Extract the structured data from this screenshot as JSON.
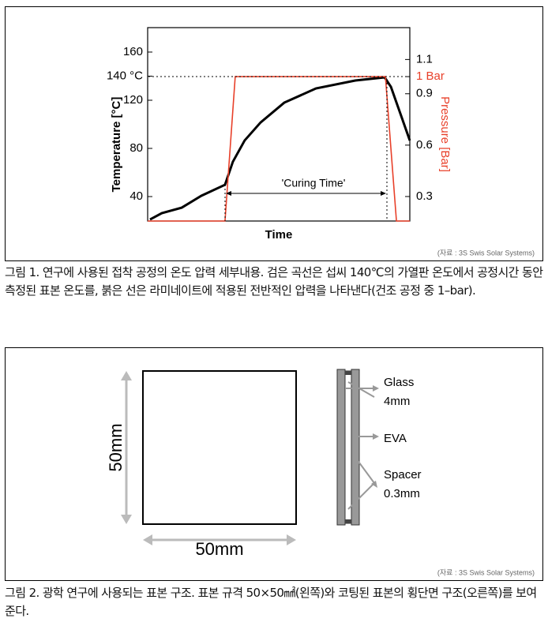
{
  "figures": [
    {
      "chart_data": {
        "type": "line",
        "y_label": "Temperature [°C]",
        "y2_label": "Pressure [Bar]",
        "x_label": "Time",
        "annotation": "'Curing Time'",
        "xlim": [
          0,
          100
        ],
        "ylim": [
          19.7,
          180.3
        ],
        "y2lim": [
          0.157,
          1.286
        ],
        "yticks": [
          40,
          80,
          120,
          {
            "value": 140,
            "label": "140 °C"
          },
          160
        ],
        "y2ticks": [
          0.3,
          0.6,
          0.9,
          {
            "value": 1,
            "label": "1 Bar"
          },
          1.1
        ],
        "series": [
          {
            "name": "Temperature",
            "color": "#000000",
            "x": [
              0.9,
              5.4,
              13,
              20.5,
              29.5,
              32.5,
              37,
              43.1,
              52.1,
              64.2,
              79.2,
              90.4,
              92.8,
              100
            ],
            "values": [
              21,
              26.2,
              30.8,
              40.7,
              49.8,
              68.9,
              86.6,
              101.6,
              118,
              129.8,
              136.4,
              139,
              131.1,
              86.6
            ]
          },
          {
            "name": "Pressure",
            "color": "#e8402a",
            "axis": "y2",
            "x": [
              0,
              29.5,
              33.4,
              90.7,
              94.9,
              100
            ],
            "values": [
              0.157,
              0.157,
              1,
              1,
              0.157,
              0.157
            ]
          }
        ]
      },
      "source": "(자료 : 3S Swis Solar Systems)",
      "caption": "그림 1. 연구에 사용된 접착 공정의 온도 압력 세부내용. 검은 곡선은 섭씨 140℃의 가열판 온도에서 공정시간 동안 측정된 표본 온도를, 붉은 선은 라미네이트에 적용된 전반적인 압력을 나타낸다(건조 공정 중 1–bar)."
    },
    {
      "height_label": "50mm",
      "width_label": "50mm",
      "glass": "Glass",
      "glass_size": "4mm",
      "eva": "EVA",
      "spacer": "Spacer",
      "spacer_size": "0.3mm",
      "source": "(자료 : 3S Swis Solar Systems)",
      "caption": "그림 2. 광학 연구에 사용되는 표본 구조. 표본 규격 50×50㎟(왼쪽)와 코팅된 표본의 횡단면 구조(오른쪽)를 보여준다."
    }
  ]
}
